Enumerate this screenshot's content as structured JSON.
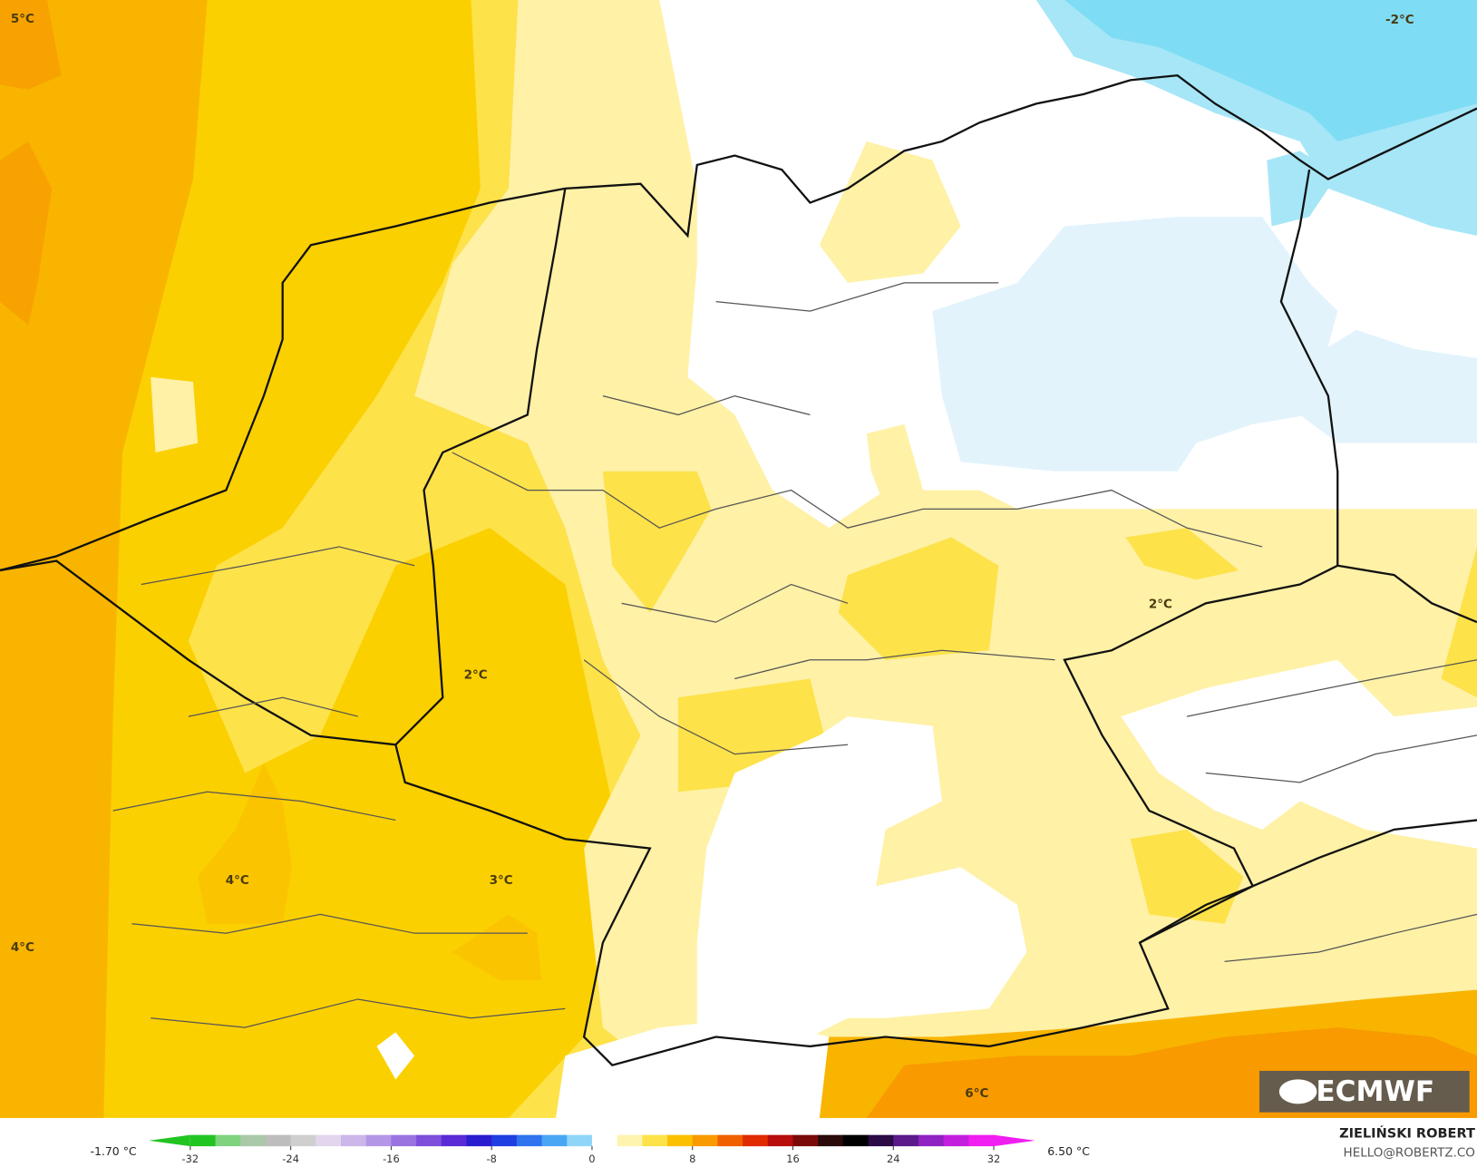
{
  "map_labels": [
    "5°C",
    "-2°C",
    "2°C",
    "2°C",
    "4°C",
    "3°C",
    "4°C",
    "6°C"
  ],
  "colorbar": {
    "min_label": "-1.70 °C",
    "max_label": "6.50 °C",
    "ticks": [
      -32,
      -24,
      -16,
      -8,
      0,
      8,
      16,
      24,
      32
    ],
    "colors": [
      "#22c422",
      "#7fd37f",
      "#a9c9a9",
      "#bdbdbd",
      "#cfcfcf",
      "#e2d6ee",
      "#cdb6ea",
      "#b496e6",
      "#9a73e0",
      "#7e4fda",
      "#5a2bd4",
      "#2a1ccf",
      "#1f3fe0",
      "#2f74ee",
      "#49a6f5",
      "#8fd5fa",
      "#ffffff",
      "#fff3b0",
      "#fde24a",
      "#fbc000",
      "#f89a00",
      "#f06000",
      "#e02a00",
      "#b80d0d",
      "#7a0a0a",
      "#2a0a0a",
      "#000000",
      "#2b0a45",
      "#5c1a8a",
      "#8f22c0",
      "#c21fdc",
      "#f01ef0"
    ]
  },
  "credits": {
    "author": "ZIELIŃSKI ROBERT",
    "email": "HELLO@ROBERTZ.CO"
  },
  "logo": "ECMWF"
}
